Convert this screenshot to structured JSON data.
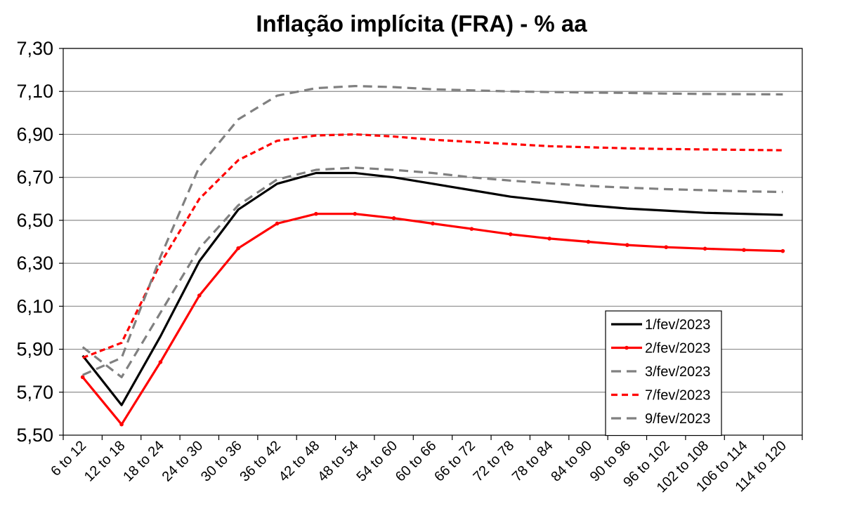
{
  "chart_data": {
    "type": "line",
    "title": "Inflação implícita (FRA) - % aa",
    "xlabel": "",
    "ylabel": "",
    "ylim": [
      5.5,
      7.3
    ],
    "yticks": [
      "5,50",
      "5,70",
      "5,90",
      "6,10",
      "6,30",
      "6,50",
      "6,70",
      "6,90",
      "7,10",
      "7,30"
    ],
    "grid": true,
    "legend_position": "bottom-right",
    "categories": [
      "6 to 12",
      "12 to 18",
      "18 to 24",
      "24 to 30",
      "30 to 36",
      "36 to 42",
      "42 to 48",
      "48 to 54",
      "54 to 60",
      "60 to 66",
      "66 to 72",
      "72 to 78",
      "78 to 84",
      "84 to 90",
      "90 to 96",
      "96 to 102",
      "102 to 108",
      "106 to 114",
      "114 to 120"
    ],
    "series": [
      {
        "name": "1/fev/2023",
        "color": "#000000",
        "dash": "solid",
        "marker": false,
        "values": [
          5.87,
          5.64,
          5.96,
          6.31,
          6.55,
          6.67,
          6.72,
          6.72,
          6.7,
          6.67,
          6.64,
          6.61,
          6.59,
          6.57,
          6.555,
          6.545,
          6.535,
          6.53,
          6.525
        ]
      },
      {
        "name": "2/fev/2023",
        "color": "#ff0000",
        "dash": "solid",
        "marker": true,
        "values": [
          5.77,
          5.55,
          5.84,
          6.15,
          6.37,
          6.485,
          6.53,
          6.53,
          6.51,
          6.485,
          6.46,
          6.435,
          6.415,
          6.4,
          6.385,
          6.375,
          6.368,
          6.362,
          6.357
        ]
      },
      {
        "name": "3/fev/2023",
        "color": "#808080",
        "dash": "dashed",
        "marker": false,
        "values": [
          5.91,
          5.77,
          6.07,
          6.37,
          6.57,
          6.69,
          6.735,
          6.745,
          6.735,
          6.72,
          6.7,
          6.685,
          6.672,
          6.66,
          6.652,
          6.645,
          6.64,
          6.635,
          6.632
        ]
      },
      {
        "name": "7/fev/2023",
        "color": "#ff0000",
        "dash": "dashed",
        "marker": false,
        "values": [
          5.86,
          5.93,
          6.3,
          6.6,
          6.78,
          6.87,
          6.895,
          6.9,
          6.89,
          6.875,
          6.865,
          6.855,
          6.845,
          6.84,
          6.835,
          6.832,
          6.83,
          6.828,
          6.826
        ]
      },
      {
        "name": "9/fev/2023",
        "color": "#808080",
        "dash": "dashed",
        "marker": false,
        "values": [
          5.78,
          5.86,
          6.33,
          6.75,
          6.97,
          7.08,
          7.115,
          7.125,
          7.12,
          7.11,
          7.105,
          7.1,
          7.097,
          7.095,
          7.093,
          7.09,
          7.088,
          7.087,
          7.086
        ]
      }
    ]
  }
}
